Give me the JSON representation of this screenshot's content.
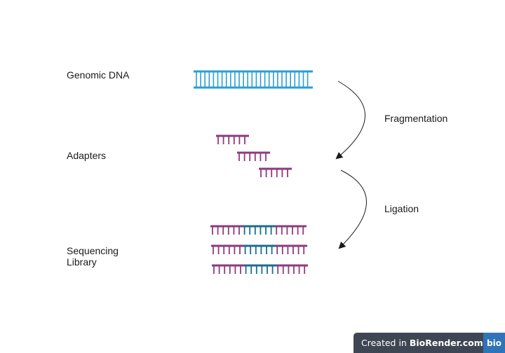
{
  "labels": {
    "genomic_dna": "Genomic DNA",
    "adapters": "Adapters",
    "sequencing_library": "Sequencing Library",
    "fragmentation": "Fragmentation",
    "ligation": "Ligation"
  },
  "watermark": {
    "prefix": "Created in ",
    "brand": "BioRender.com",
    "logo": "bio"
  },
  "colors": {
    "dna": "#2a9fd0",
    "adapter": "#8e3a7e",
    "insert": "#1a6d92",
    "arrow": "#1a1a1a"
  }
}
